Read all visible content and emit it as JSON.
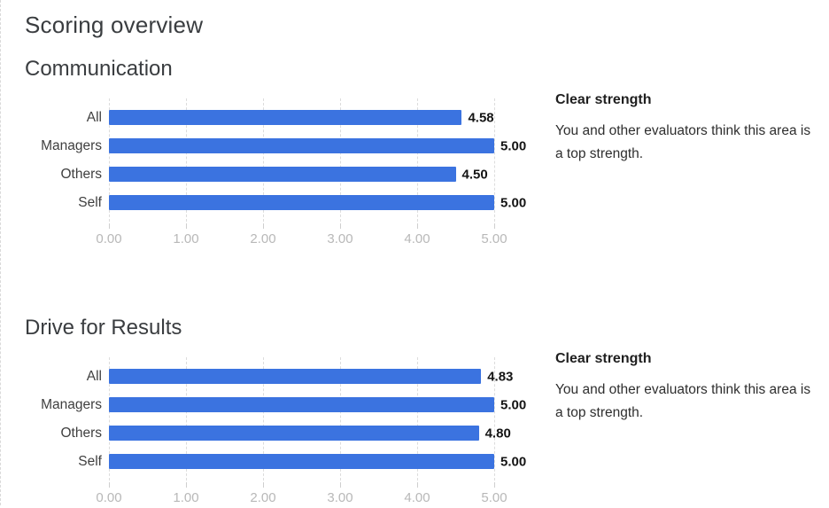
{
  "page": {
    "title": "Scoring overview"
  },
  "colors": {
    "bar": "#3b73e0",
    "gridline": "#dcdcdc",
    "axis_text": "#b8b8b8",
    "category_text": "#3f3f3f",
    "value_text": "#141414"
  },
  "sections": [
    {
      "heading": "Communication",
      "note_title": "Clear strength",
      "note_body": "You and other evaluators think this area is a top strength."
    },
    {
      "heading": "Drive for Results",
      "note_title": "Clear strength",
      "note_body": "You and other evaluators think this area is a top strength."
    }
  ],
  "chart_data": [
    {
      "type": "bar",
      "orientation": "horizontal",
      "title": "Communication",
      "categories": [
        "All",
        "Managers",
        "Others",
        "Self"
      ],
      "values": [
        4.58,
        5.0,
        4.5,
        5.0
      ],
      "value_labels": [
        "4.58",
        "5.00",
        "4.50",
        "5.00"
      ],
      "xlim": [
        0,
        5
      ],
      "xticks": [
        "0.00",
        "1.00",
        "2.00",
        "3.00",
        "4.00",
        "5.00"
      ],
      "grid": "dashed-vertical",
      "legend": "none",
      "bar_color": "#3b73e0"
    },
    {
      "type": "bar",
      "orientation": "horizontal",
      "title": "Drive for Results",
      "categories": [
        "All",
        "Managers",
        "Others",
        "Self"
      ],
      "values": [
        4.83,
        5.0,
        4.8,
        5.0
      ],
      "value_labels": [
        "4.83",
        "5.00",
        "4.80",
        "5.00"
      ],
      "xlim": [
        0,
        5
      ],
      "xticks": [
        "0.00",
        "1.00",
        "2.00",
        "3.00",
        "4.00",
        "5.00"
      ],
      "grid": "dashed-vertical",
      "legend": "none",
      "bar_color": "#3b73e0"
    }
  ]
}
